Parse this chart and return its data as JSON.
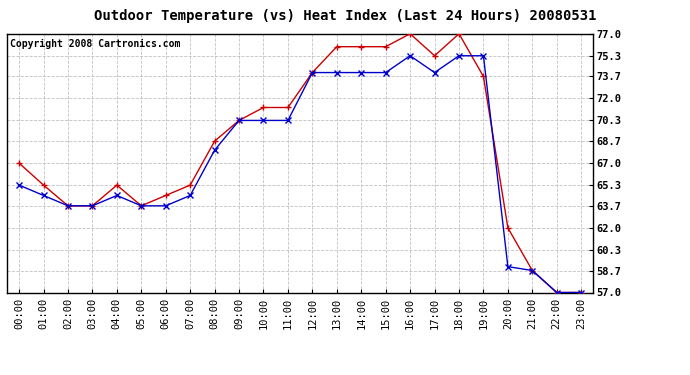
{
  "title": "Outdoor Temperature (vs) Heat Index (Last 24 Hours) 20080531",
  "copyright": "Copyright 2008 Cartronics.com",
  "hours": [
    "00:00",
    "01:00",
    "02:00",
    "03:00",
    "04:00",
    "05:00",
    "06:00",
    "07:00",
    "08:00",
    "09:00",
    "10:00",
    "11:00",
    "12:00",
    "13:00",
    "14:00",
    "15:00",
    "16:00",
    "17:00",
    "18:00",
    "19:00",
    "20:00",
    "21:00",
    "22:00",
    "23:00"
  ],
  "temp": [
    67.0,
    65.3,
    63.7,
    63.7,
    65.3,
    63.7,
    64.5,
    65.3,
    68.7,
    70.3,
    71.3,
    71.3,
    74.0,
    76.0,
    76.0,
    76.0,
    77.0,
    75.3,
    77.0,
    73.7,
    62.0,
    58.7,
    57.0,
    57.0
  ],
  "heat_index": [
    65.3,
    64.5,
    63.7,
    63.7,
    64.5,
    63.7,
    63.7,
    64.5,
    68.0,
    70.3,
    70.3,
    70.3,
    74.0,
    74.0,
    74.0,
    74.0,
    75.3,
    74.0,
    75.3,
    75.3,
    59.0,
    58.7,
    57.0,
    57.0
  ],
  "temp_color": "#cc0000",
  "heat_color": "#0000cc",
  "ylim_min": 57.0,
  "ylim_max": 77.0,
  "yticks": [
    57.0,
    58.7,
    60.3,
    62.0,
    63.7,
    65.3,
    67.0,
    68.7,
    70.3,
    72.0,
    73.7,
    75.3,
    77.0
  ],
  "background_color": "#ffffff",
  "plot_bg_color": "#ffffff",
  "grid_color": "#bbbbbb",
  "title_fontsize": 10,
  "copyright_fontsize": 7,
  "tick_fontsize": 7.5
}
